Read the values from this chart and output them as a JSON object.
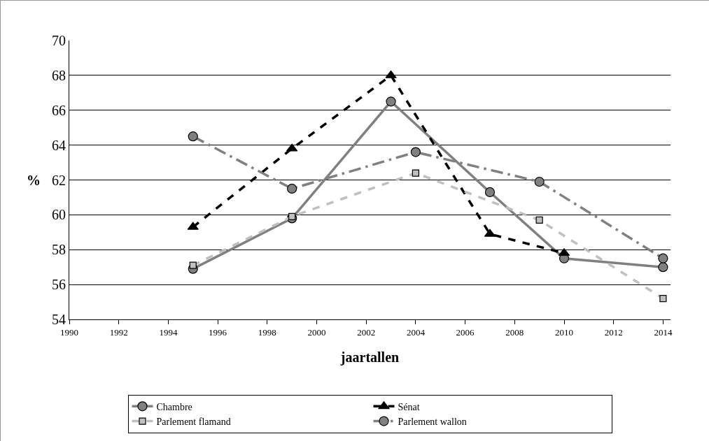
{
  "chart_data": {
    "type": "line",
    "xlabel": "jaartallen",
    "ylabel": "%",
    "xlim": [
      1990,
      2014.3
    ],
    "xticks": [
      1990,
      1992,
      1994,
      1996,
      1998,
      2000,
      2002,
      2004,
      2006,
      2008,
      2010,
      2012,
      2014
    ],
    "ylim": [
      54,
      70
    ],
    "yticks": [
      54,
      56,
      58,
      60,
      62,
      64,
      66,
      68,
      70
    ],
    "grid": "y",
    "legend": "bottom",
    "series": [
      {
        "name": "Chambre",
        "color": "#808080",
        "marker": "circle",
        "line_style": "solid",
        "x": [
          1995,
          1999,
          2003,
          2007,
          2010,
          2014
        ],
        "values": [
          56.9,
          59.8,
          66.5,
          61.3,
          57.5,
          57.0
        ]
      },
      {
        "name": "Sénat",
        "color": "#000000",
        "marker": "triangle",
        "line_style": "dashed",
        "x": [
          1995,
          1999,
          2003,
          2007,
          2010
        ],
        "values": [
          59.3,
          63.8,
          68.0,
          58.9,
          57.8
        ]
      },
      {
        "name": "Parlement flamand",
        "color": "#c0c0c0",
        "marker": "square",
        "line_style": "dashed",
        "x": [
          1995,
          1999,
          2004,
          2009,
          2014
        ],
        "values": [
          57.1,
          59.9,
          62.4,
          59.7,
          55.2
        ]
      },
      {
        "name": "Parlement wallon",
        "color": "#808080",
        "marker": "circle",
        "line_style": "dashdot",
        "x": [
          1995,
          1999,
          2004,
          2009,
          2014
        ],
        "values": [
          64.5,
          61.5,
          63.6,
          61.9,
          57.5
        ]
      }
    ]
  }
}
